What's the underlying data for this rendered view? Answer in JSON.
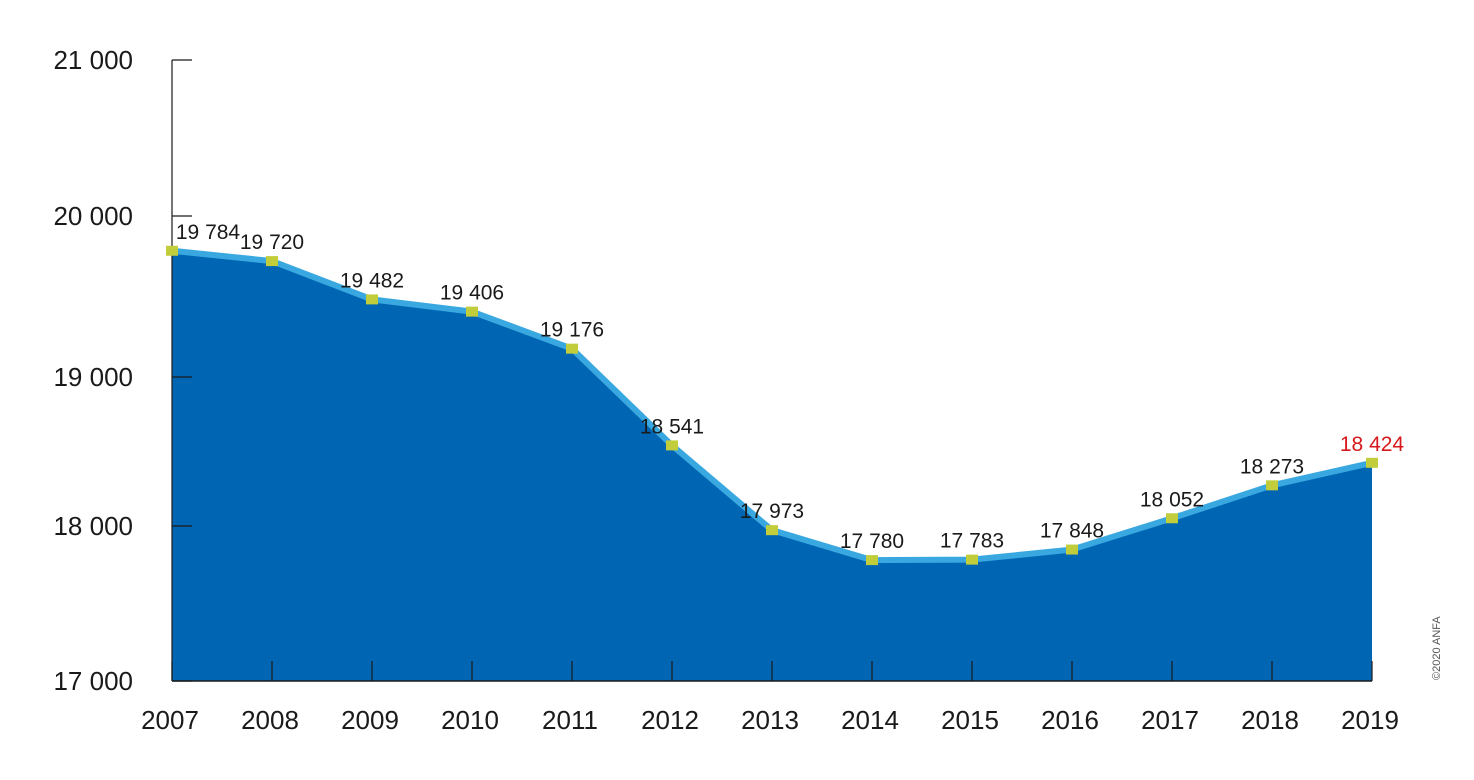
{
  "chart_data": {
    "type": "area",
    "title": "",
    "xlabel": "",
    "ylabel": "",
    "x": [
      "2007",
      "2008",
      "2009",
      "2010",
      "2011",
      "2012",
      "2013",
      "2014",
      "2015",
      "2016",
      "2017",
      "2018",
      "2019"
    ],
    "values": [
      19784,
      19720,
      19482,
      19406,
      19176,
      18541,
      17973,
      17780,
      17783,
      17848,
      18052,
      18273,
      18424
    ],
    "data_labels": [
      "19 784",
      "19 720",
      "19 482",
      "19 406",
      "19 176",
      "18 541",
      "17 973",
      "17 780",
      "17 783",
      "17 848",
      "18 052",
      "18 273",
      "18 424"
    ],
    "highlight_index": 12,
    "ylim": [
      17000,
      21000
    ],
    "yticks": [
      17000,
      18000,
      19000,
      20000,
      21000
    ],
    "ytick_labels": [
      "17 000",
      "18 000",
      "19 000",
      "20 000",
      "21 000"
    ],
    "grid": false,
    "legend": "none"
  },
  "colors": {
    "area_fill": "#0066b3",
    "line": "#3aa8e0",
    "marker": "#c2cd3c",
    "highlight_label": "#d7191c",
    "axis": "#1a1a1a"
  },
  "credit": "©2020 ANFA"
}
